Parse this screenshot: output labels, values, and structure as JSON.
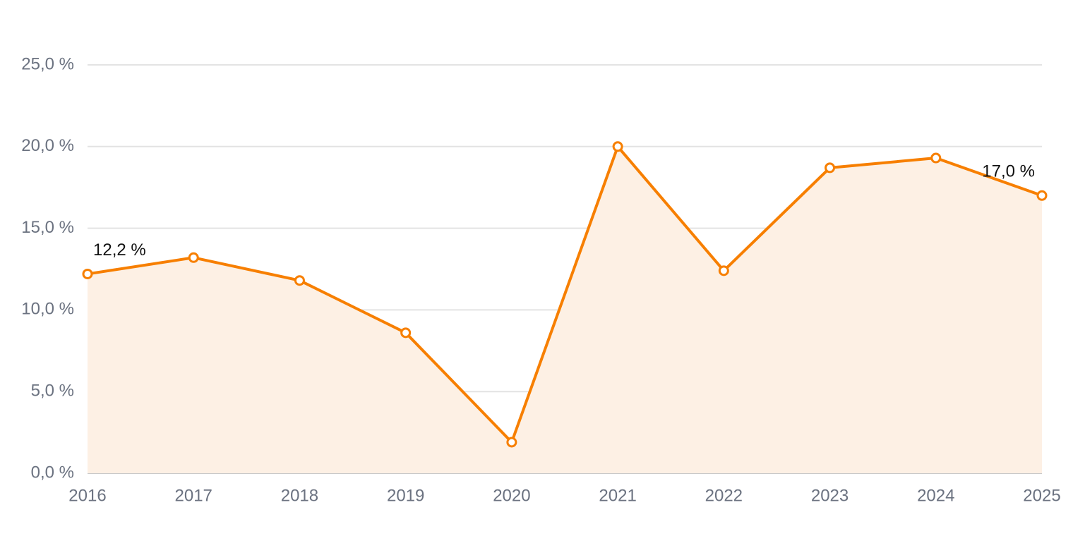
{
  "chart_data": {
    "type": "area",
    "x": [
      2016,
      2017,
      2018,
      2019,
      2020,
      2021,
      2022,
      2023,
      2024,
      2025
    ],
    "series": [
      {
        "color": "#f77f00",
        "fill": "#fdf0e4",
        "values": [
          12.2,
          13.2,
          11.8,
          8.6,
          1.9,
          20.0,
          12.4,
          18.7,
          19.3,
          17.0
        ],
        "value_labels": [
          "12,2 %",
          null,
          null,
          null,
          null,
          null,
          null,
          null,
          null,
          "17,0 %"
        ]
      }
    ],
    "xlim": [
      2016,
      2025
    ],
    "xticks": [
      2016,
      2017,
      2018,
      2019,
      2020,
      2021,
      2022,
      2023,
      2024,
      2025
    ],
    "ylim": [
      0,
      25
    ],
    "yticks": [
      {
        "value": 0,
        "label": "0,0 %"
      },
      {
        "value": 5,
        "label": "5,0 %"
      },
      {
        "value": 10,
        "label": "10,0 %"
      },
      {
        "value": 15,
        "label": "15,0 %"
      },
      {
        "value": 20,
        "label": "20,0 %"
      },
      {
        "value": 25,
        "label": "25,0 %"
      }
    ],
    "grid": true
  }
}
